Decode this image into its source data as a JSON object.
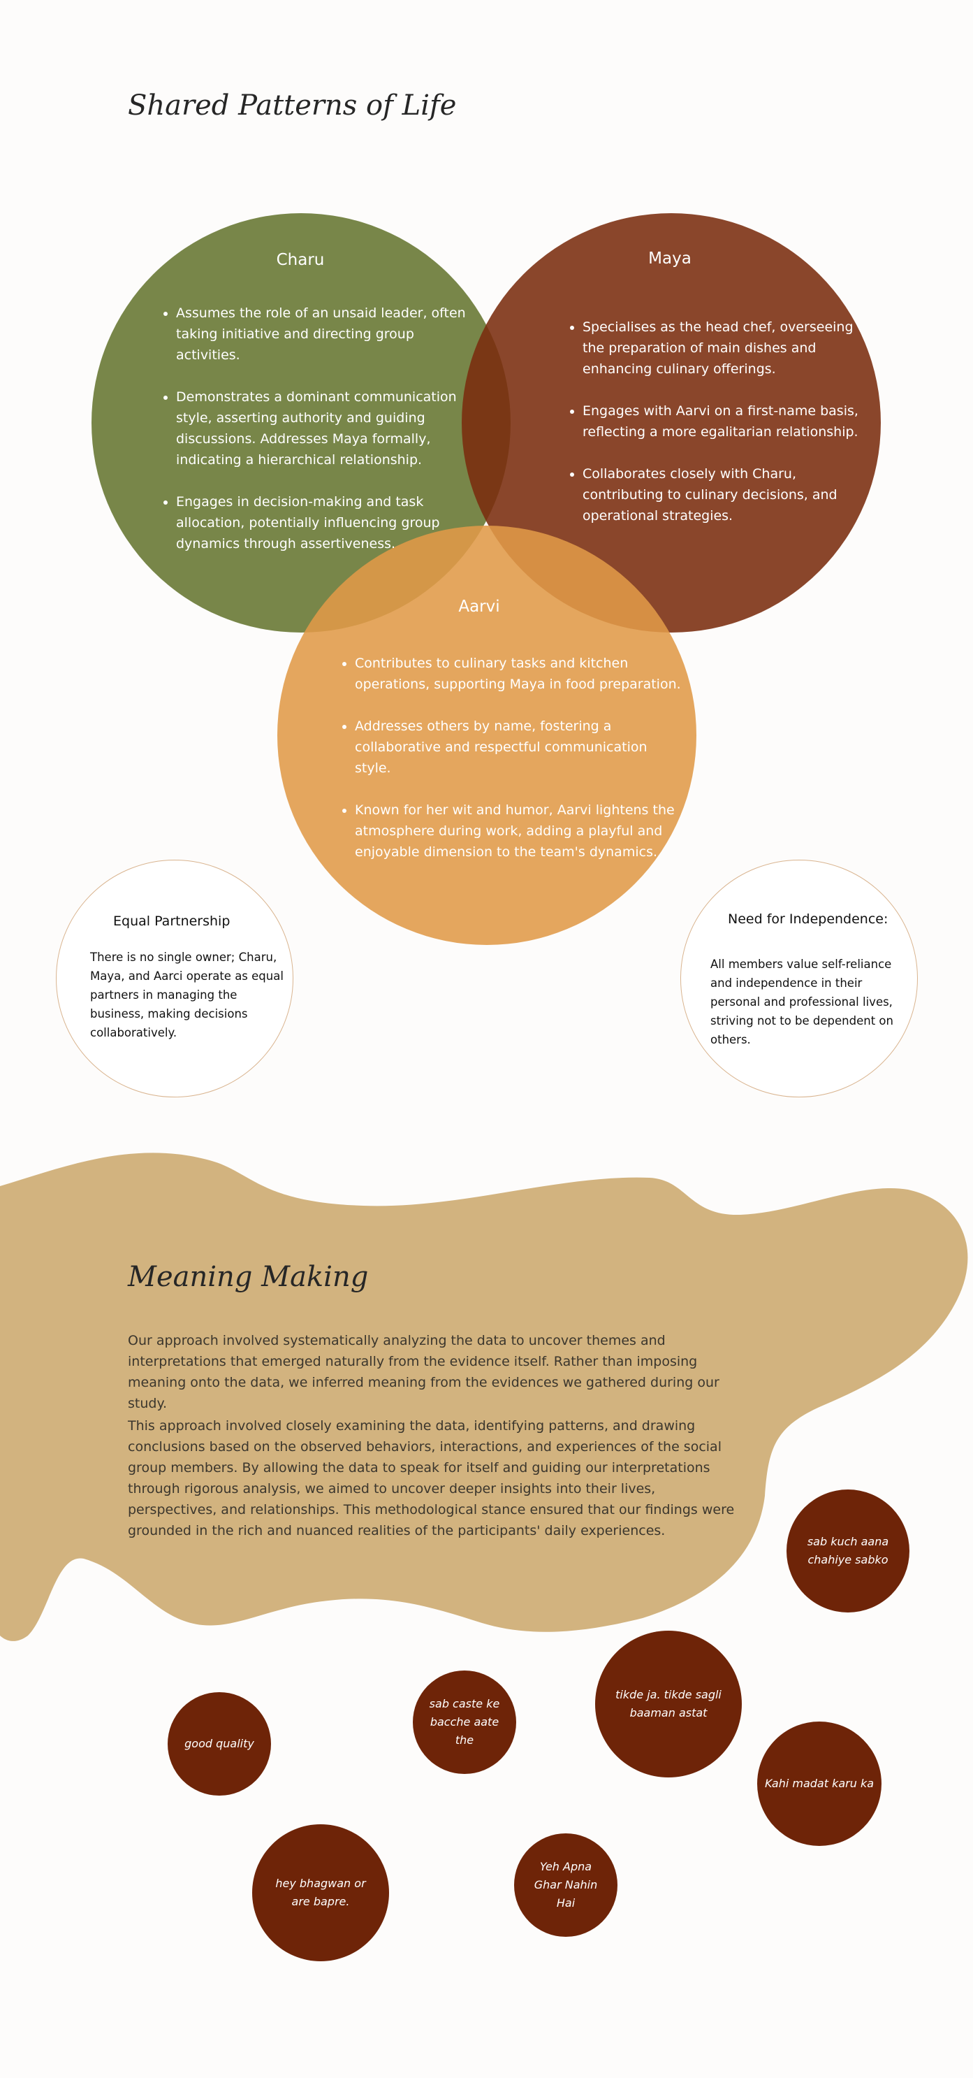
{
  "shared": {
    "title": "Shared Patterns of Life",
    "charu": {
      "name": "Charu",
      "color": "#6c7c39",
      "points": [
        "Assumes the role of an unsaid leader, often taking initiative and directing group activities.",
        "Demonstrates a dominant communication style, asserting authority and guiding discussions. Addresses Maya formally, indicating a hierarchical relationship.",
        "Engages in decision-making and task allocation, potentially influencing group dynamics through assertiveness."
      ]
    },
    "maya": {
      "name": "Maya",
      "color": "#7a2c0e",
      "points": [
        "Specialises as the head chef, overseeing the preparation of main dishes and enhancing culinary offerings.",
        "Engages with Aarvi on a first-name basis, reflecting a more egalitarian relationship.",
        "Collaborates closely with Charu, contributing to culinary decisions, and operational strategies."
      ]
    },
    "aarvi": {
      "name": "Aarvi",
      "color": "#e09a48",
      "points": [
        "Contributes to culinary tasks and kitchen operations, supporting Maya in food preparation.",
        "Addresses others by name, fostering a collaborative and respectful communication style.",
        "Known for her wit and humor, Aarvi lightens the atmosphere during work, adding a playful and enjoyable dimension to the team's dynamics."
      ]
    },
    "equal": {
      "heading": "Equal Partnership",
      "text": "There is no single owner; Charu, Maya, and Aarci operate as equal partners in managing the business, making decisions collaboratively."
    },
    "independence": {
      "heading": "Need for Independence:",
      "text": "All members value self-reliance and independence in their personal and professional lives, striving not to be dependent on others."
    }
  },
  "meaning": {
    "title": "Meaning Making",
    "blob_color": "#d2b37f",
    "paragraph1": "Our approach involved systematically analyzing the data to uncover themes and interpretations that emerged naturally from the evidence itself. Rather than imposing meaning onto the data, we inferred meaning from the evidences we gathered during our study.",
    "paragraph2": "This approach involved closely examining the data, identifying patterns, and drawing conclusions based on the observed behaviors, interactions, and experiences of the social group members. By allowing the data to speak for itself and guiding our interpretations through rigorous analysis, we aimed to uncover deeper insights into their lives, perspectives, and relationships. This methodological stance ensured that our findings were grounded in the rich and nuanced realities of the participants' daily experiences."
  },
  "quotes": {
    "color": "#6e2408",
    "items": [
      "sab kuch aana chahiye sabko",
      "sab caste ke bacche aate the",
      "tikde ja. tikde sagli baaman astat",
      "good quality",
      "Kahi madat karu ka",
      "hey bhagwan or are bapre.",
      "Yeh Apna Ghar Nahin Hai"
    ]
  }
}
